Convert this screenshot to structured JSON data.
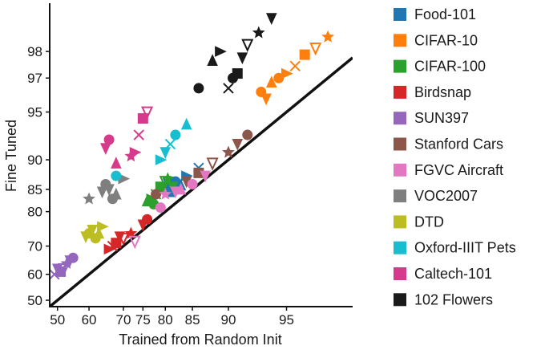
{
  "chart_data": {
    "type": "scatter",
    "title": "",
    "xlabel": "Trained from Random Init",
    "ylabel": "Fine Tuned",
    "x_scale": "logit",
    "y_scale": "logit",
    "xlim": [
      47.5,
      97.8
    ],
    "ylim": [
      47.5,
      99.05
    ],
    "x_ticks": [
      50,
      60,
      70,
      75,
      80,
      85,
      90,
      95
    ],
    "y_ticks": [
      50,
      60,
      70,
      80,
      85,
      90,
      95,
      97,
      98
    ],
    "grid": false,
    "legend_position": "right",
    "reference_line": "y = x",
    "series": [
      {
        "name": "Food-101",
        "color": "#1f77b4",
        "points": [
          [
            80.5,
            86.2
          ],
          [
            82,
            86.5
          ],
          [
            83,
            85.8
          ],
          [
            84,
            87.5
          ],
          [
            86,
            88.8
          ],
          [
            81,
            84.5
          ]
        ]
      },
      {
        "name": "CIFAR-10",
        "color": "#ff7f0e",
        "points": [
          [
            93.2,
            96.3
          ],
          [
            94,
            96.8
          ],
          [
            95,
            97.2
          ],
          [
            95.5,
            97.5
          ],
          [
            96,
            97.9
          ],
          [
            96.5,
            98.1
          ],
          [
            97,
            98.4
          ],
          [
            93.6,
            95.9
          ],
          [
            94.5,
            97.0
          ]
        ]
      },
      {
        "name": "CIFAR-100",
        "color": "#2ca02c",
        "points": [
          [
            76,
            82.5
          ],
          [
            77,
            83
          ],
          [
            78,
            84
          ],
          [
            79,
            85.5
          ],
          [
            80,
            86.5
          ],
          [
            80.5,
            87
          ],
          [
            81.5,
            85.5
          ],
          [
            77.5,
            81.8
          ]
        ]
      },
      {
        "name": "Birdsnap",
        "color": "#d62728",
        "points": [
          [
            66,
            69
          ],
          [
            67,
            70
          ],
          [
            68,
            71
          ],
          [
            70,
            72.5
          ],
          [
            72,
            74
          ],
          [
            75,
            76.5
          ],
          [
            76,
            78
          ],
          [
            69,
            73
          ]
        ]
      },
      {
        "name": "SUN397",
        "color": "#9467bd",
        "points": [
          [
            49,
            60
          ],
          [
            51,
            61
          ],
          [
            52,
            62
          ],
          [
            53,
            64
          ],
          [
            54,
            65
          ],
          [
            55,
            66
          ],
          [
            50,
            62
          ]
        ]
      },
      {
        "name": "Stanford Cars",
        "color": "#8c564b",
        "points": [
          [
            86,
            88
          ],
          [
            88,
            89.5
          ],
          [
            90,
            91
          ],
          [
            91,
            92
          ],
          [
            92,
            93
          ],
          [
            84,
            86.5
          ],
          [
            78,
            84
          ]
        ]
      },
      {
        "name": "FGVC Aircraft",
        "color": "#e377c2",
        "points": [
          [
            73,
            71.5
          ],
          [
            80,
            84
          ],
          [
            82,
            84.5
          ],
          [
            85,
            86
          ],
          [
            87,
            87.5
          ],
          [
            79,
            81
          ],
          [
            83,
            85
          ]
        ]
      },
      {
        "name": "VOC2007",
        "color": "#7f7f7f",
        "points": [
          [
            60,
            83
          ],
          [
            64,
            84.5
          ],
          [
            65,
            86
          ],
          [
            66,
            85
          ],
          [
            67,
            83
          ],
          [
            68,
            84
          ],
          [
            70,
            87
          ]
        ]
      },
      {
        "name": "DTD",
        "color": "#bcbd22",
        "points": [
          [
            59,
            73
          ],
          [
            60,
            74
          ],
          [
            61,
            75
          ],
          [
            62,
            72.5
          ],
          [
            63,
            74
          ],
          [
            64,
            76
          ]
        ]
      },
      {
        "name": "Oxford-IIIT Pets",
        "color": "#17becf",
        "points": [
          [
            68,
            87.5
          ],
          [
            80,
            91
          ],
          [
            82,
            93
          ],
          [
            84,
            94
          ],
          [
            79,
            90
          ],
          [
            81,
            92
          ]
        ]
      },
      {
        "name": "Caltech-101",
        "color": "#d63a8a",
        "points": [
          [
            65,
            91.5
          ],
          [
            66,
            92.5
          ],
          [
            68,
            89.5
          ],
          [
            73,
            91
          ],
          [
            74,
            93
          ],
          [
            75,
            94.5
          ],
          [
            76,
            95
          ],
          [
            72,
            90.5
          ]
        ]
      },
      {
        "name": "102 Flowers",
        "color": "#1a1a1a",
        "points": [
          [
            86,
            96.5
          ],
          [
            88,
            97.7
          ],
          [
            89,
            98
          ],
          [
            90,
            96.5
          ],
          [
            91,
            97.2
          ],
          [
            92,
            98.2
          ],
          [
            93,
            98.5
          ],
          [
            94,
            98.8
          ],
          [
            90.5,
            97.0
          ],
          [
            91.5,
            97.8
          ]
        ]
      }
    ]
  }
}
